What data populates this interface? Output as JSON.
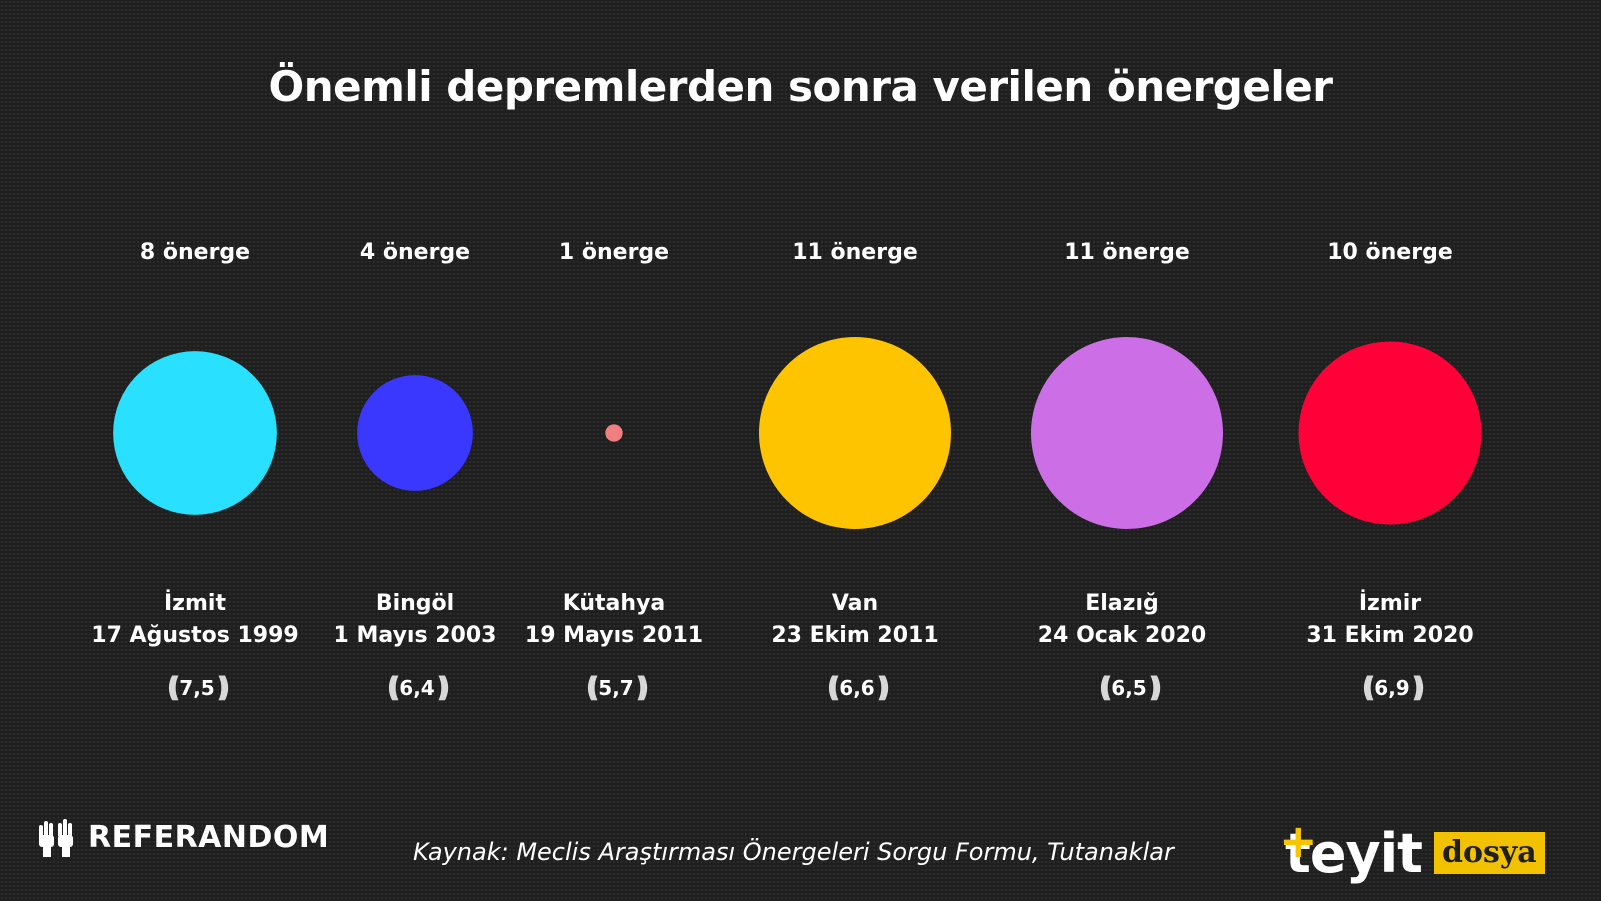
{
  "title": "Önemli depremlerden sonra verilen önergeler",
  "source": "Kaynak: Meclis Araştırması Önergeleri Sorgu Formu, Tutanaklar",
  "logos": {
    "left": "REFERANDOM",
    "right_brand": "teyit",
    "right_tag": "dosya",
    "left_icon": "raised-hands-icon",
    "wave_icon": "seismic-wave-icon"
  },
  "wave_glyphs": {
    "left": "((((",
    "right": "))))"
  },
  "chart_data": {
    "type": "bubble",
    "title": "Önemli depremlerden sonra verilen önergeler",
    "items": [
      {
        "count_label": "8 önerge",
        "count": 8,
        "place": "İzmit",
        "date": "17 Ağustos 1999",
        "magnitude": "7,5",
        "color": "#29e0ff"
      },
      {
        "count_label": "4 önerge",
        "count": 4,
        "place": "Bingöl",
        "date": "1 Mayıs 2003",
        "magnitude": "6,4",
        "color": "#3a38ff"
      },
      {
        "count_label": "1 önerge",
        "count": 1,
        "place": "Kütahya",
        "date": "19 Mayıs 2011",
        "magnitude": "5,7",
        "color": "#f08080"
      },
      {
        "count_label": "11 önerge",
        "count": 11,
        "place": "Van",
        "date": "23 Ekim 2011",
        "magnitude": "6,6",
        "color": "#ffc400"
      },
      {
        "count_label": "11 önerge",
        "count": 11,
        "place": "Elazığ",
        "date": "24 Ocak 2020",
        "magnitude": "6,5",
        "color": "#cc6ee6"
      },
      {
        "count_label": "10 önerge",
        "count": 10,
        "place": "İzmir",
        "date": "31 Ekim 2020",
        "magnitude": "6,9",
        "color": "#ff0038"
      }
    ]
  }
}
